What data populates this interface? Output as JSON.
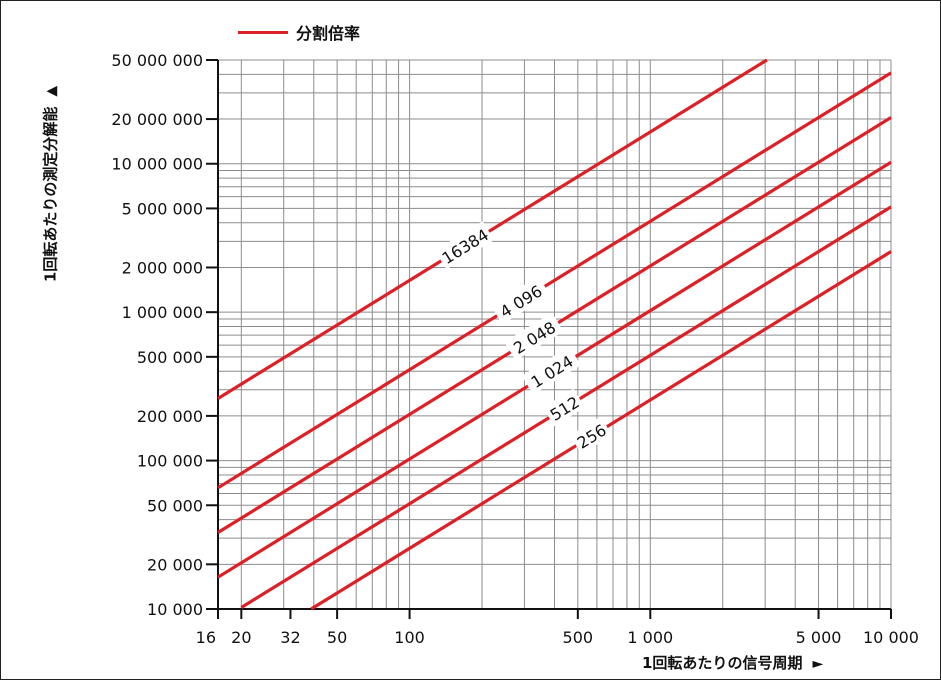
{
  "legend": {
    "label": "分割倍率",
    "color": "#dd1f26"
  },
  "ylabel": "1回転あたりの測定分解能",
  "xlabel": "1回転あたりの信号周期",
  "arrows": {
    "up": "▲",
    "right": "►"
  },
  "chart_data": {
    "type": "line",
    "xscale": "log",
    "yscale": "log",
    "xlim": [
      16,
      10000
    ],
    "ylim": [
      10000,
      50000000
    ],
    "xticks": [
      {
        "value": 16,
        "label": "16"
      },
      {
        "value": 20,
        "label": "20"
      },
      {
        "value": 32,
        "label": "32"
      },
      {
        "value": 50,
        "label": "50"
      },
      {
        "value": 100,
        "label": "100"
      },
      {
        "value": 500,
        "label": "500"
      },
      {
        "value": 1000,
        "label": "1 000"
      },
      {
        "value": 5000,
        "label": "5 000"
      },
      {
        "value": 10000,
        "label": "10 000"
      }
    ],
    "yticks": [
      {
        "value": 10000,
        "label": "10 000"
      },
      {
        "value": 20000,
        "label": "20 000"
      },
      {
        "value": 50000,
        "label": "50 000"
      },
      {
        "value": 100000,
        "label": "100 000"
      },
      {
        "value": 200000,
        "label": "200 000"
      },
      {
        "value": 500000,
        "label": "500 000"
      },
      {
        "value": 1000000,
        "label": "1 000 000"
      },
      {
        "value": 2000000,
        "label": "2 000 000"
      },
      {
        "value": 5000000,
        "label": "5 000 000"
      },
      {
        "value": 10000000,
        "label": "10 000 000"
      },
      {
        "value": 20000000,
        "label": "20 000 000"
      },
      {
        "value": 50000000,
        "label": "50 000 000"
      }
    ],
    "grid": true,
    "series": [
      {
        "name": "16384",
        "label_text": "16384",
        "label_at_x": 170,
        "x": [
          16,
          3052
        ],
        "y": [
          262144,
          50000000
        ]
      },
      {
        "name": "4096",
        "label_text": "4 096",
        "label_at_x": 290,
        "x": [
          16,
          10000
        ],
        "y": [
          65536,
          40960000
        ]
      },
      {
        "name": "2048",
        "label_text": "2 048",
        "label_at_x": 330,
        "x": [
          16,
          10000
        ],
        "y": [
          32768,
          20480000
        ]
      },
      {
        "name": "1024",
        "label_text": "1 024",
        "label_at_x": 390,
        "x": [
          16,
          10000
        ],
        "y": [
          16384,
          10240000
        ]
      },
      {
        "name": "512",
        "label_text": "512",
        "label_at_x": 440,
        "x": [
          20,
          10000
        ],
        "y": [
          10240,
          5120000
        ]
      },
      {
        "name": "256",
        "label_text": "256",
        "label_at_x": 570,
        "x": [
          39,
          10000
        ],
        "y": [
          10000,
          2560000
        ]
      }
    ]
  }
}
